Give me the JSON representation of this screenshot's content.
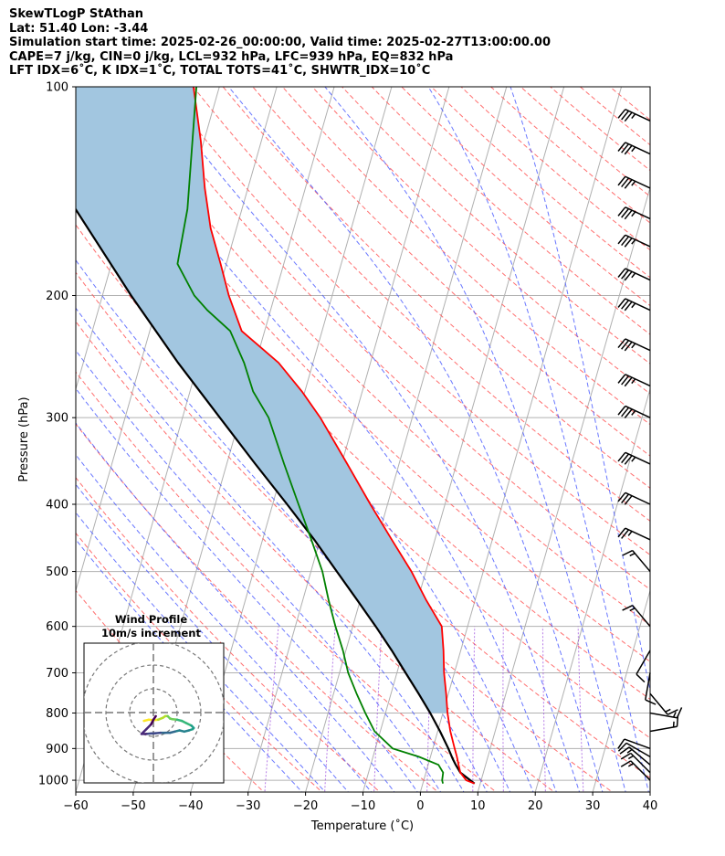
{
  "title": {
    "lines": [
      "SkewTLogP StAthan",
      "Lat: 51.40   Lon: -3.44",
      "Simulation start time: 2025-02-26_00:00:00, Valid time: 2025-02-27T13:00:00.00",
      "CAPE=7 j/kg, CIN=0 j/kg, LCL=932 hPa, LFC=939 hPa, EQ=832 hPa",
      "LFT IDX=6˚C, K IDX=1˚C, TOTAL TOTS=41˚C, SHWTR_IDX=10˚C"
    ]
  },
  "chart_data": {
    "type": "skewt-logp",
    "xlabel": "Temperature (˚C)",
    "ylabel": "Pressure (hPa)",
    "xlim": [
      -60,
      40
    ],
    "ylim": [
      1040,
      100
    ],
    "x_ticks": [
      -60,
      -50,
      -40,
      -30,
      -20,
      -10,
      0,
      10,
      20,
      30,
      40
    ],
    "x_tick_labels": [
      "−60",
      "−50",
      "−40",
      "−30",
      "−20",
      "−10",
      "0",
      "10",
      "20",
      "30",
      "40"
    ],
    "y_ticks": [
      100,
      200,
      300,
      400,
      500,
      600,
      700,
      800,
      900,
      1000
    ],
    "y_tick_labels": [
      "100",
      "200",
      "300",
      "400",
      "500",
      "600",
      "700",
      "800",
      "900",
      "1000"
    ],
    "grid": true,
    "colors": {
      "temperature": "#ff0000",
      "dewpoint": "#008000",
      "parcel": "#000000",
      "cape_fill": "#a2c6e0",
      "isotherm": "#b0b0b0",
      "dry_adiabat": "#ff5555",
      "moist_adiabat": "#4455ff",
      "mixing_ratio": "#9944dd"
    },
    "temperature": [
      [
        1011,
        9
      ],
      [
        1000,
        7.4
      ],
      [
        975,
        6
      ],
      [
        950,
        5.3
      ],
      [
        925,
        4.6
      ],
      [
        900,
        3.8
      ],
      [
        850,
        2.2
      ],
      [
        800,
        0.8
      ],
      [
        750,
        -0.4
      ],
      [
        700,
        -1.8
      ],
      [
        650,
        -3
      ],
      [
        600,
        -4.5
      ],
      [
        550,
        -8.5
      ],
      [
        500,
        -12.5
      ],
      [
        450,
        -17.5
      ],
      [
        400,
        -23
      ],
      [
        350,
        -29
      ],
      [
        300,
        -36
      ],
      [
        275,
        -40.5
      ],
      [
        250,
        -46
      ],
      [
        225,
        -54
      ],
      [
        200,
        -58
      ],
      [
        180,
        -61
      ],
      [
        160,
        -64.5
      ],
      [
        140,
        -67.5
      ],
      [
        120,
        -70.5
      ],
      [
        100,
        -74.5
      ]
    ],
    "dewpoint": [
      [
        1011,
        3.5
      ],
      [
        1000,
        3.2
      ],
      [
        975,
        3
      ],
      [
        950,
        1.8
      ],
      [
        925,
        -2
      ],
      [
        900,
        -7
      ],
      [
        850,
        -11
      ],
      [
        800,
        -13.5
      ],
      [
        750,
        -16
      ],
      [
        700,
        -18.5
      ],
      [
        650,
        -20.5
      ],
      [
        600,
        -23
      ],
      [
        550,
        -25.5
      ],
      [
        500,
        -28
      ],
      [
        450,
        -31.5
      ],
      [
        400,
        -35.5
      ],
      [
        350,
        -40
      ],
      [
        300,
        -45
      ],
      [
        275,
        -49
      ],
      [
        250,
        -52
      ],
      [
        225,
        -56
      ],
      [
        210,
        -61
      ],
      [
        200,
        -64
      ],
      [
        180,
        -68.5
      ],
      [
        150,
        -69.5
      ],
      [
        100,
        -74
      ]
    ],
    "parcel": [
      [
        1011,
        9
      ],
      [
        975,
        6
      ],
      [
        950,
        4.8
      ],
      [
        932,
        4
      ],
      [
        900,
        2.7
      ],
      [
        850,
        0.4
      ],
      [
        800,
        -2.2
      ],
      [
        750,
        -5.2
      ],
      [
        700,
        -8.5
      ],
      [
        650,
        -12
      ],
      [
        600,
        -16
      ],
      [
        550,
        -20.5
      ],
      [
        500,
        -25.5
      ],
      [
        450,
        -31
      ],
      [
        400,
        -37.5
      ],
      [
        350,
        -45
      ],
      [
        300,
        -53.5
      ],
      [
        250,
        -63.5
      ],
      [
        200,
        -75
      ],
      [
        150,
        -89
      ],
      [
        100,
        -108
      ]
    ],
    "wind_barbs": [
      {
        "p": 1000,
        "speed_kt": 15,
        "dir_deg": 315
      },
      {
        "p": 975,
        "speed_kt": 15,
        "dir_deg": 315
      },
      {
        "p": 950,
        "speed_kt": 15,
        "dir_deg": 310
      },
      {
        "p": 925,
        "speed_kt": 10,
        "dir_deg": 300
      },
      {
        "p": 900,
        "speed_kt": 10,
        "dir_deg": 290
      },
      {
        "p": 850,
        "speed_kt": 15,
        "dir_deg": 80
      },
      {
        "p": 800,
        "speed_kt": 15,
        "dir_deg": 100
      },
      {
        "p": 750,
        "speed_kt": 15,
        "dir_deg": 140
      },
      {
        "p": 700,
        "speed_kt": 10,
        "dir_deg": 190
      },
      {
        "p": 650,
        "speed_kt": 10,
        "dir_deg": 210
      },
      {
        "p": 600,
        "speed_kt": 15,
        "dir_deg": 320
      },
      {
        "p": 500,
        "speed_kt": 15,
        "dir_deg": 320
      },
      {
        "p": 450,
        "speed_kt": 25,
        "dir_deg": 295
      },
      {
        "p": 400,
        "speed_kt": 30,
        "dir_deg": 295
      },
      {
        "p": 350,
        "speed_kt": 35,
        "dir_deg": 295
      },
      {
        "p": 300,
        "speed_kt": 35,
        "dir_deg": 295
      },
      {
        "p": 270,
        "speed_kt": 35,
        "dir_deg": 295
      },
      {
        "p": 240,
        "speed_kt": 35,
        "dir_deg": 295
      },
      {
        "p": 210,
        "speed_kt": 35,
        "dir_deg": 295
      },
      {
        "p": 190,
        "speed_kt": 35,
        "dir_deg": 295
      },
      {
        "p": 170,
        "speed_kt": 35,
        "dir_deg": 295
      },
      {
        "p": 155,
        "speed_kt": 35,
        "dir_deg": 295
      },
      {
        "p": 140,
        "speed_kt": 35,
        "dir_deg": 295
      },
      {
        "p": 125,
        "speed_kt": 35,
        "dir_deg": 295
      },
      {
        "p": 112,
        "speed_kt": 35,
        "dir_deg": 295
      }
    ],
    "hodograph": {
      "title_lines": [
        "Wind Profile",
        "10m/s increment"
      ],
      "ring_step_ms": 10,
      "rings": 3,
      "points_ms": [
        [
          -4,
          -3.5
        ],
        [
          -2,
          -3
        ],
        [
          0,
          -3.2
        ],
        [
          2,
          -3
        ],
        [
          4,
          -2.2
        ],
        [
          5,
          -1.5
        ],
        [
          6,
          -1.5
        ],
        [
          7,
          -2.5
        ],
        [
          8,
          -2.8
        ],
        [
          10,
          -3
        ],
        [
          12,
          -3.5
        ],
        [
          14,
          -4.5
        ],
        [
          16,
          -5.5
        ],
        [
          17,
          -6.5
        ],
        [
          16.5,
          -7
        ],
        [
          15,
          -7.5
        ],
        [
          13,
          -8
        ],
        [
          11,
          -7.5
        ],
        [
          9,
          -8
        ],
        [
          7,
          -8.5
        ],
        [
          5,
          -8.5
        ],
        [
          3,
          -8.5
        ],
        [
          1,
          -8.7
        ],
        [
          -1,
          -8.8
        ],
        [
          -3,
          -9
        ],
        [
          -5,
          -9
        ],
        [
          -3,
          -7
        ],
        [
          -1,
          -5
        ],
        [
          0,
          -3
        ],
        [
          1,
          -1.5
        ]
      ]
    }
  }
}
